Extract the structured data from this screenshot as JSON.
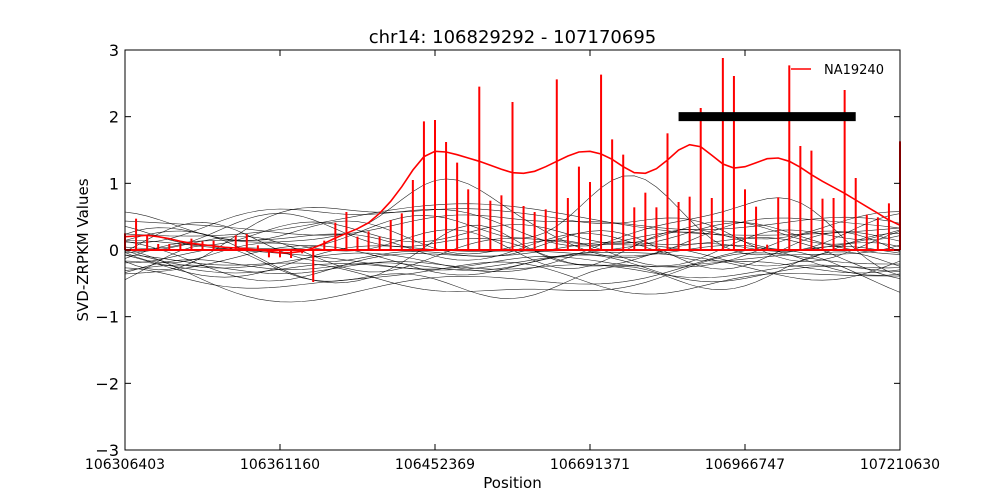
{
  "chart_data": {
    "type": "line",
    "title": "chr14: 106829292 - 107170695",
    "xlabel": "Position",
    "ylabel": "SVD-ZRPKM Values",
    "ylim": [
      -3,
      3
    ],
    "yticks": [
      -3,
      -2,
      -1,
      0,
      1,
      2,
      3
    ],
    "ytick_labels": [
      "−3",
      "−2",
      "−1",
      "0",
      "1",
      "2",
      "3"
    ],
    "xlim": [
      0,
      70
    ],
    "xticks": [
      0,
      14,
      28,
      42,
      56,
      70
    ],
    "xtick_labels": [
      "106306403",
      "106361160",
      "106452369",
      "106691371",
      "106966747",
      "107210630"
    ],
    "grid": false,
    "legend": {
      "position": "top-right",
      "entries": [
        "NA19240"
      ]
    },
    "colors": {
      "highlight": "#ff0000",
      "background_samples": "#000000",
      "region_bar": "#000000"
    },
    "region_bar": {
      "x_start": 50,
      "x_end": 66,
      "y": 2.0
    },
    "series": [
      {
        "name": "NA19240",
        "x": [
          0,
          1,
          2,
          3,
          4,
          5,
          6,
          7,
          8,
          9,
          10,
          11,
          12,
          13,
          14,
          15,
          16,
          17,
          18,
          19,
          20,
          21,
          22,
          23,
          24,
          25,
          26,
          27,
          28,
          29,
          30,
          31,
          32,
          33,
          34,
          35,
          36,
          37,
          38,
          39,
          40,
          41,
          42,
          43,
          44,
          45,
          46,
          47,
          48,
          49,
          50,
          51,
          52,
          53,
          54,
          55,
          56,
          57,
          58,
          59,
          60,
          61,
          62,
          63,
          64,
          65,
          66,
          67,
          68,
          69,
          70
        ],
        "smoothed": [
          0.2,
          0.21,
          0.22,
          0.2,
          0.17,
          0.13,
          0.1,
          0.08,
          0.06,
          0.04,
          0.03,
          0.02,
          0.0,
          -0.02,
          -0.04,
          -0.04,
          -0.02,
          0.03,
          0.1,
          0.18,
          0.25,
          0.32,
          0.41,
          0.55,
          0.73,
          0.95,
          1.2,
          1.4,
          1.48,
          1.47,
          1.43,
          1.38,
          1.33,
          1.27,
          1.21,
          1.16,
          1.15,
          1.18,
          1.25,
          1.33,
          1.41,
          1.47,
          1.48,
          1.44,
          1.36,
          1.25,
          1.16,
          1.15,
          1.22,
          1.35,
          1.5,
          1.58,
          1.55,
          1.42,
          1.29,
          1.23,
          1.25,
          1.31,
          1.37,
          1.38,
          1.33,
          1.24,
          1.13,
          1.03,
          0.94,
          0.85,
          0.75,
          0.65,
          0.55,
          0.45,
          0.37
        ],
        "stems": [
          0.25,
          0.47,
          0.23,
          0.09,
          0.09,
          0.1,
          0.17,
          0.13,
          0.14,
          0.0,
          0.22,
          0.24,
          0.07,
          -0.11,
          -0.11,
          -0.12,
          -0.05,
          -0.48,
          0.14,
          0.41,
          0.57,
          0.2,
          0.28,
          0.2,
          0.45,
          0.55,
          1.05,
          1.93,
          1.95,
          1.62,
          1.31,
          0.91,
          2.45,
          0.74,
          0.82,
          2.22,
          0.66,
          0.57,
          0.61,
          2.56,
          0.78,
          1.25,
          1.02,
          2.63,
          1.66,
          1.43,
          0.64,
          0.86,
          0.64,
          1.75,
          0.72,
          0.8,
          2.13,
          0.78,
          2.88,
          2.61,
          0.91,
          0.65,
          0.08,
          0.79,
          2.77,
          1.56,
          1.49,
          0.77,
          0.78,
          2.4,
          1.08,
          0.53,
          0.49,
          0.7,
          1.63
        ]
      }
    ],
    "background_series_count": 26
  }
}
